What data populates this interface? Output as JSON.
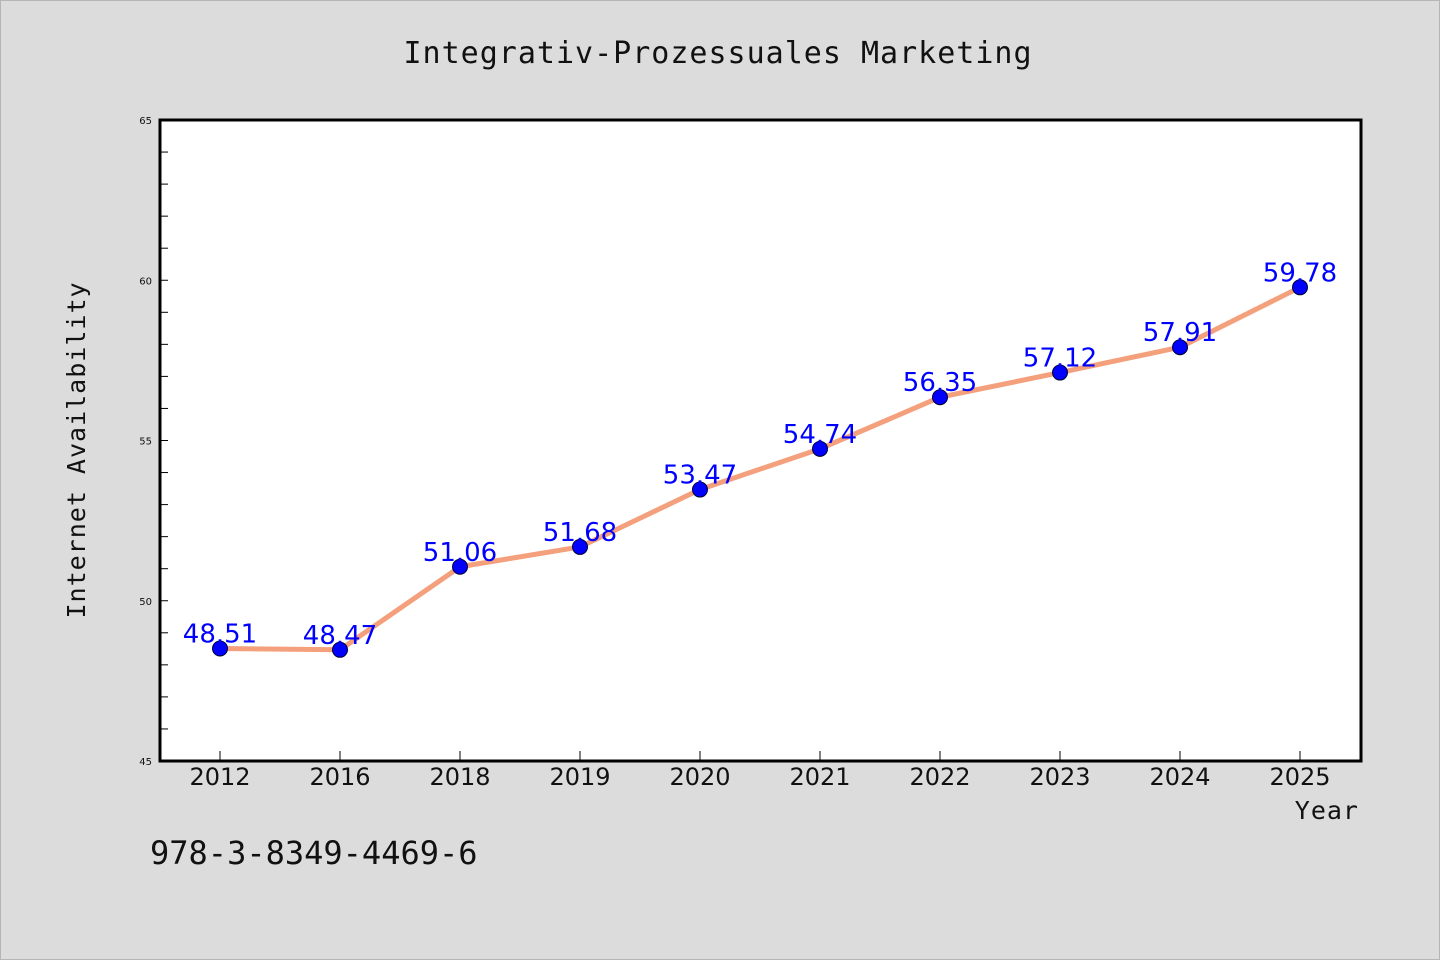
{
  "chart_data": {
    "type": "line",
    "title": "Integrativ-Prozessuales Marketing",
    "xlabel": "Year",
    "ylabel": "Internet Availability",
    "categories": [
      "2012",
      "2016",
      "2018",
      "2019",
      "2020",
      "2021",
      "2022",
      "2023",
      "2024",
      "2025"
    ],
    "series": [
      {
        "values": [
          48.51,
          48.47,
          51.06,
          51.68,
          53.47,
          54.74,
          56.35,
          57.12,
          57.91,
          59.78
        ],
        "data_labels": [
          "48.51",
          "48.47",
          "51.06",
          "51.68",
          "53.47",
          "54.74",
          "56.35",
          "57.12",
          "57.91",
          "59.78"
        ],
        "line_color": "#f4a07c",
        "marker_color": "#0000ff"
      }
    ],
    "ylim": [
      45,
      65
    ],
    "yticks": [
      "45",
      "50",
      "55",
      "60",
      "65"
    ],
    "grid": false,
    "legend": "none"
  },
  "footer": {
    "isbn": "978-3-8349-4469-6"
  },
  "colors": {
    "background": "#dcdcdc",
    "plot_background": "#ffffff",
    "line": "#f4a07c",
    "marker": "#0000ff",
    "data_label": "#0000ff"
  }
}
